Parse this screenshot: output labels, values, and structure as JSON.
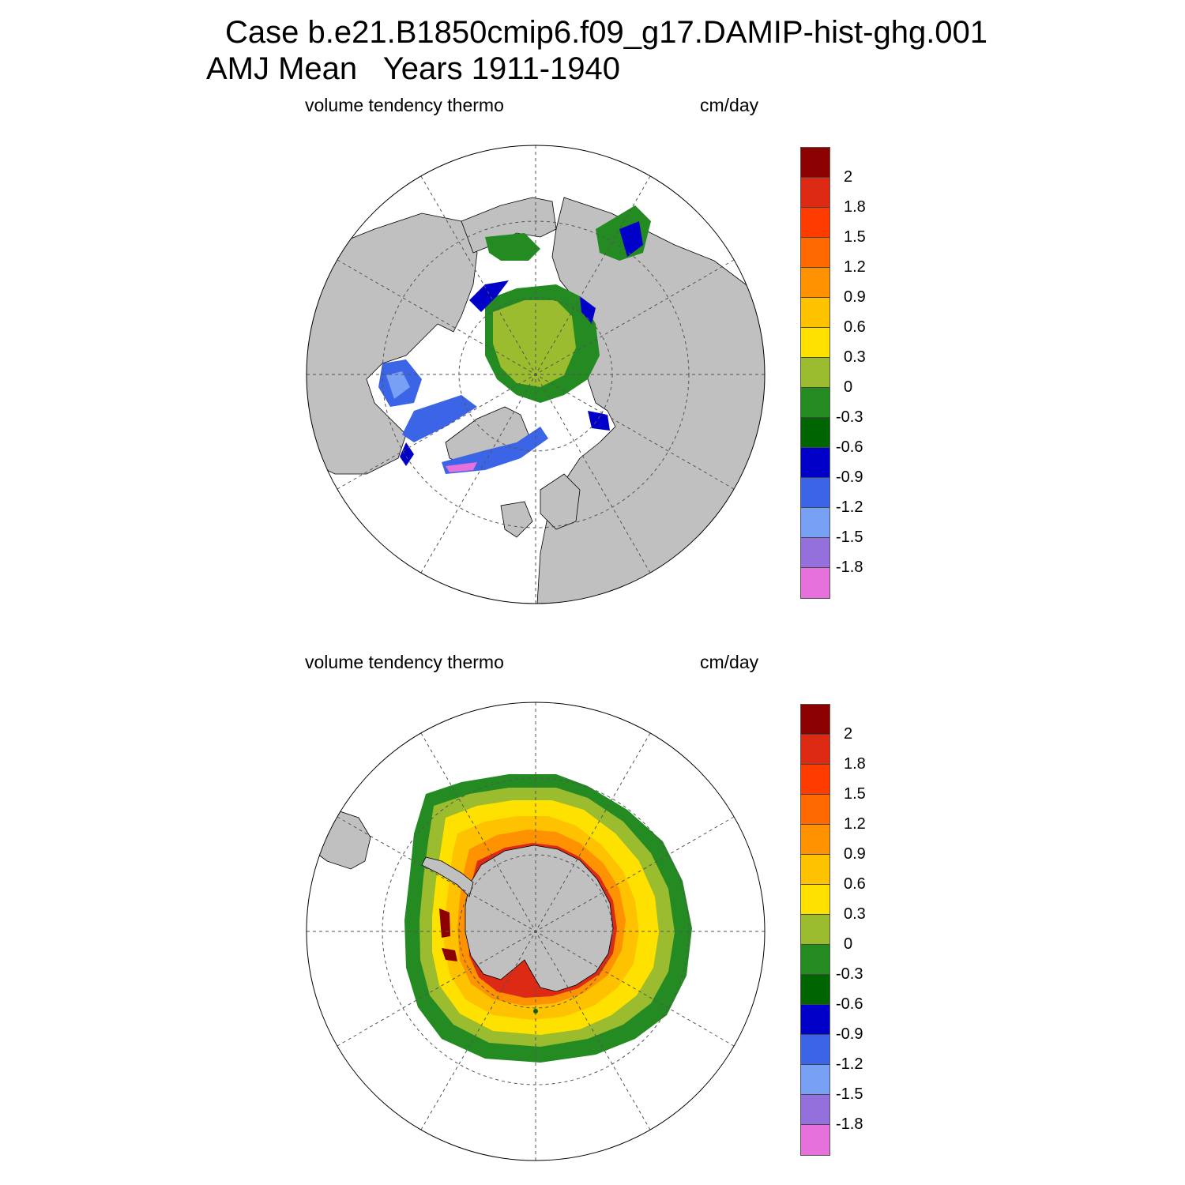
{
  "title": {
    "line1": "Case b.e21.B1850cmip6.f09_g17.DAMIP-hist-ghg.001",
    "line2": "AMJ Mean   Years 1911-1940"
  },
  "panels": [
    {
      "label_left": "volume tendency thermo",
      "label_right": "cm/day",
      "hemisphere": "north"
    },
    {
      "label_left": "volume tendency thermo",
      "label_right": "cm/day",
      "hemisphere": "south"
    }
  ],
  "colorbar": {
    "colors": [
      "#8b0000",
      "#dc2a14",
      "#ff3c00",
      "#ff6a00",
      "#ff9200",
      "#ffc200",
      "#ffe100",
      "#9abc2e",
      "#238b22",
      "#006400",
      "#0000c8",
      "#3c64e6",
      "#78a0f5",
      "#9370db",
      "#e671dc"
    ],
    "labels": [
      "2",
      "1.8",
      "1.5",
      "1.2",
      "0.9",
      "0.6",
      "0.3",
      "0",
      "-0.3",
      "-0.6",
      "-0.9",
      "-1.2",
      "-1.5",
      "-1.8"
    ]
  },
  "colors": {
    "land": "#c0c0c0",
    "ocean": "#ffffff",
    "grid": "#555555"
  }
}
